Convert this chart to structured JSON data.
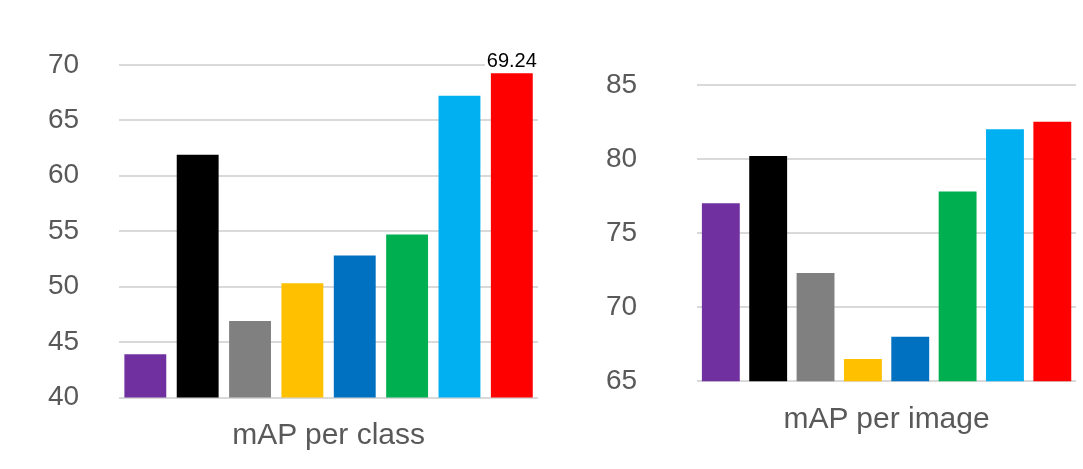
{
  "chart_data": [
    {
      "type": "bar",
      "xlabel": "mAP per class",
      "categories": [
        null,
        null,
        null,
        null,
        null,
        null,
        null,
        null
      ],
      "values": [
        43.9,
        61.9,
        46.9,
        50.3,
        52.8,
        54.7,
        67.2,
        69.24
      ],
      "colors": [
        "#7030a0",
        "#000000",
        "#808080",
        "#ffc000",
        "#0070c0",
        "#00b050",
        "#00b0f0",
        "#ff0000"
      ],
      "value_labels": [
        null,
        null,
        null,
        null,
        null,
        null,
        null,
        "69.24"
      ],
      "ylim": [
        40,
        70
      ],
      "yticks": [
        40,
        45,
        50,
        55,
        60,
        65,
        70
      ],
      "grid": "y",
      "legend": false
    },
    {
      "type": "bar",
      "xlabel": "mAP per image",
      "categories": [
        null,
        null,
        null,
        null,
        null,
        null,
        null,
        null
      ],
      "values": [
        77.0,
        80.2,
        72.3,
        66.5,
        68.0,
        77.8,
        82.0,
        82.5
      ],
      "colors": [
        "#7030a0",
        "#000000",
        "#808080",
        "#ffc000",
        "#0070c0",
        "#00b050",
        "#00b0f0",
        "#ff0000"
      ],
      "ylim": [
        65,
        85
      ],
      "yticks": [
        65,
        70,
        75,
        80,
        85
      ],
      "grid": "y",
      "legend": false
    }
  ]
}
